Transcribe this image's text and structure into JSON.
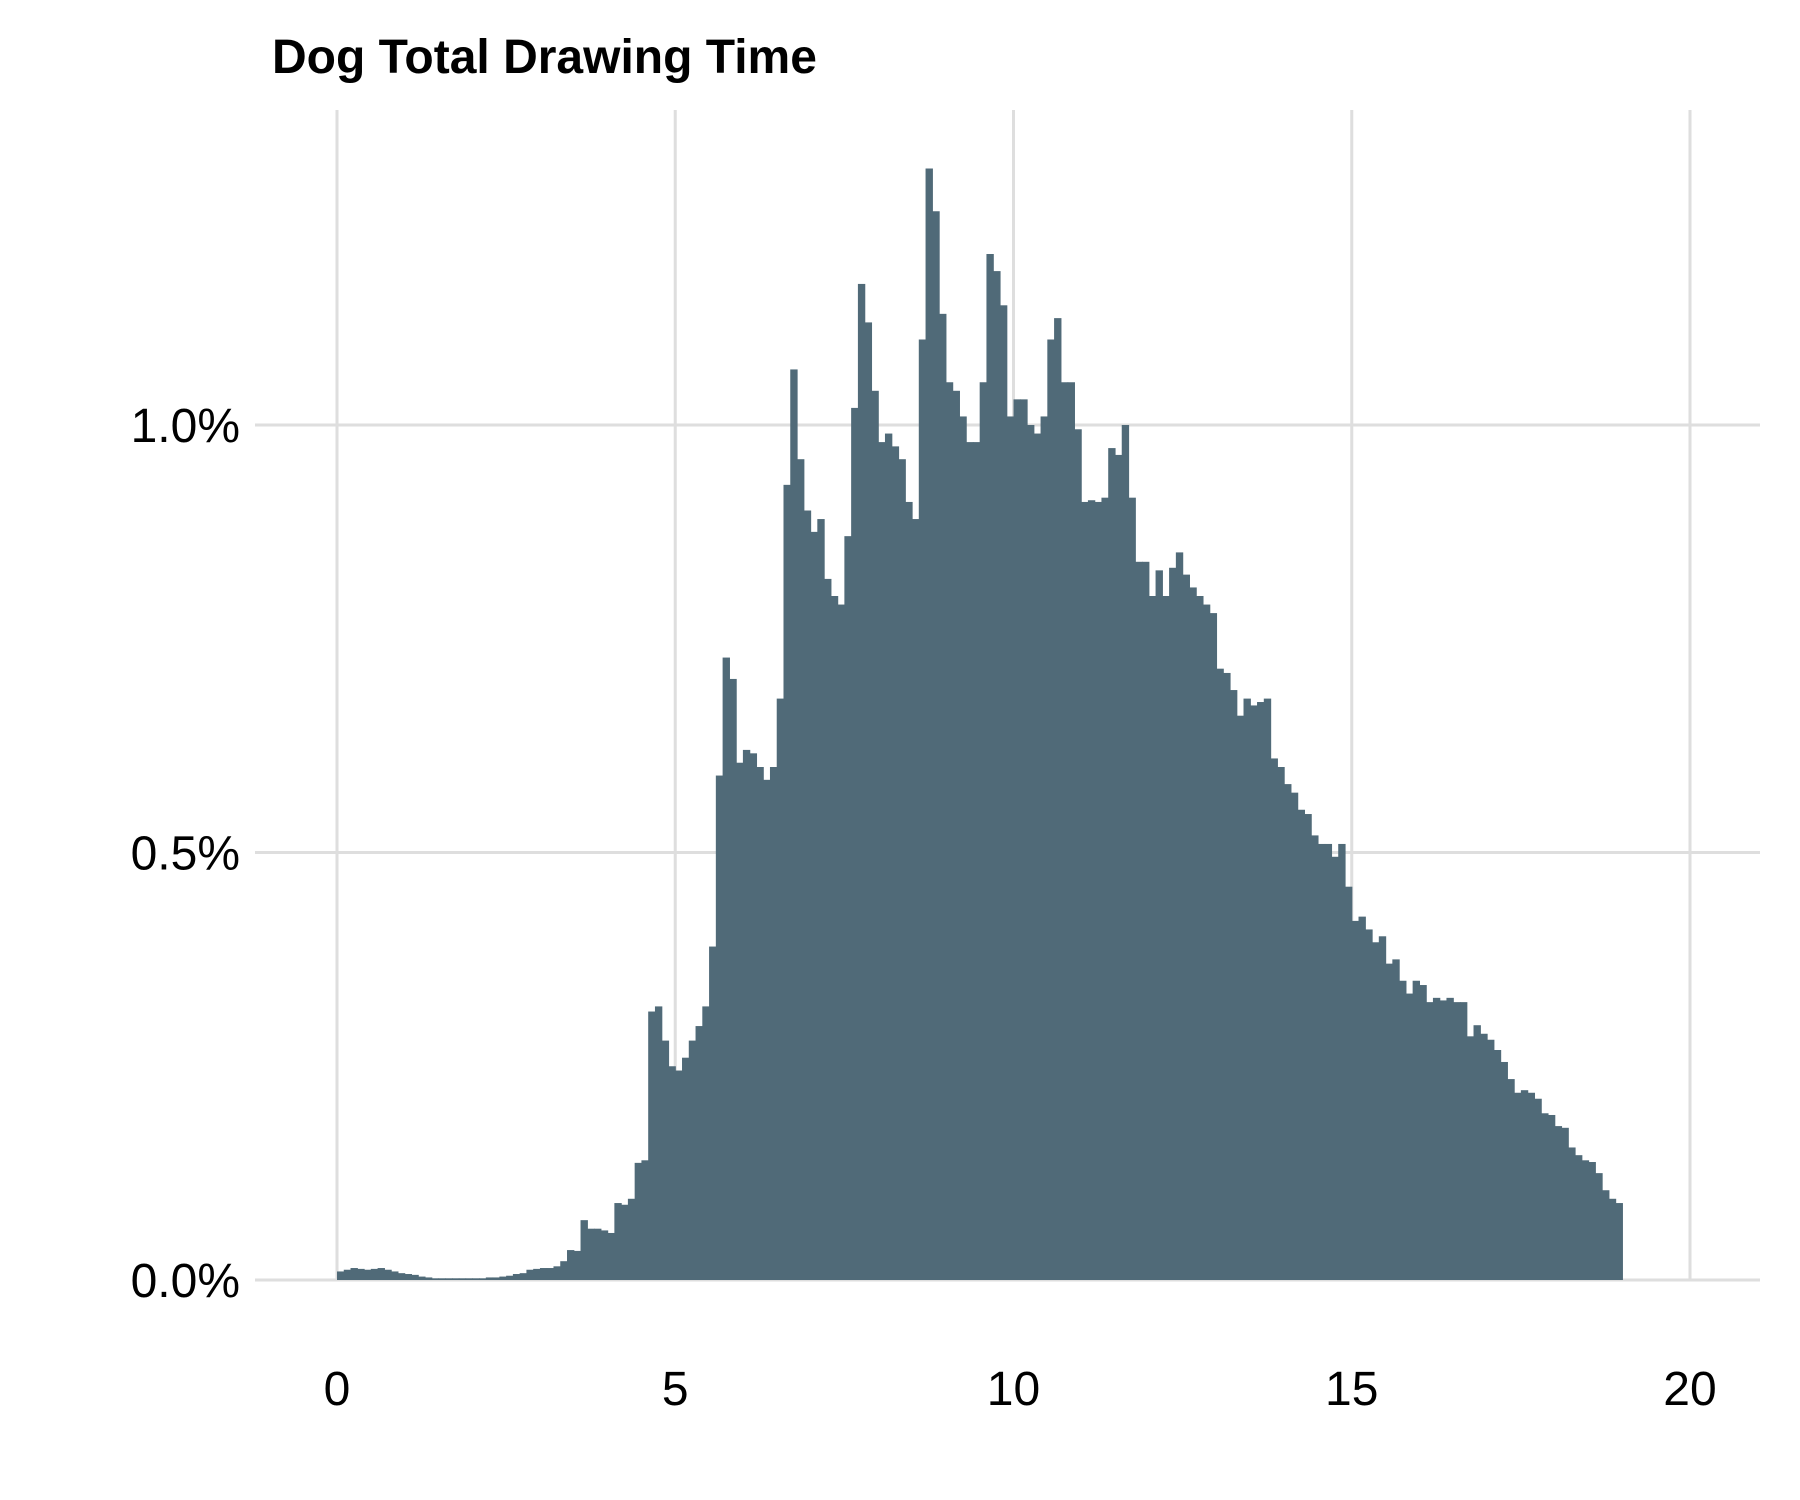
{
  "chart_data": {
    "type": "bar",
    "title": "Dog Total Drawing Time",
    "xlabel": "",
    "ylabel": "",
    "xlim": [
      -1.25,
      21.0
    ],
    "ylim": [
      0,
      1.34
    ],
    "x_ticks": [
      0,
      5,
      10,
      15,
      20
    ],
    "x_tick_labels": [
      "0",
      "5",
      "10",
      "15",
      "20"
    ],
    "y_ticks": [
      0,
      0.5,
      1.0
    ],
    "y_tick_labels": [
      "0.0%",
      "0.5%",
      "1.0%"
    ],
    "grid": true,
    "legend": "none",
    "bar_color": "#506a78",
    "grid_color": "#dedede",
    "bin_start": 0.0,
    "bin_width": 0.1,
    "values": [
      0.01,
      0.012,
      0.014,
      0.013,
      0.012,
      0.013,
      0.014,
      0.012,
      0.01,
      0.008,
      0.007,
      0.006,
      0.004,
      0.003,
      0.002,
      0.002,
      0.002,
      0.002,
      0.002,
      0.002,
      0.002,
      0.002,
      0.003,
      0.003,
      0.004,
      0.005,
      0.007,
      0.008,
      0.012,
      0.013,
      0.014,
      0.014,
      0.016,
      0.022,
      0.035,
      0.034,
      0.07,
      0.06,
      0.06,
      0.058,
      0.055,
      0.09,
      0.088,
      0.095,
      0.137,
      0.14,
      0.314,
      0.32,
      0.28,
      0.25,
      0.245,
      0.26,
      0.28,
      0.297,
      0.32,
      0.39,
      0.59,
      0.728,
      0.703,
      0.605,
      0.62,
      0.616,
      0.6,
      0.585,
      0.6,
      0.68,
      0.93,
      1.065,
      0.96,
      0.9,
      0.875,
      0.89,
      0.82,
      0.8,
      0.79,
      0.87,
      1.02,
      1.165,
      1.12,
      1.04,
      0.98,
      0.99,
      0.975,
      0.96,
      0.91,
      0.89,
      1.1,
      1.3,
      1.25,
      1.13,
      1.05,
      1.04,
      1.01,
      0.98,
      0.98,
      1.05,
      1.2,
      1.18,
      1.14,
      1.01,
      1.03,
      1.03,
      1.0,
      0.99,
      1.01,
      1.1,
      1.125,
      1.05,
      1.05,
      0.995,
      0.91,
      0.912,
      0.91,
      0.915,
      0.973,
      0.965,
      1.0,
      0.915,
      0.84,
      0.84,
      0.8,
      0.83,
      0.8,
      0.833,
      0.851,
      0.825,
      0.81,
      0.8,
      0.79,
      0.78,
      0.715,
      0.71,
      0.69,
      0.66,
      0.68,
      0.672,
      0.676,
      0.68,
      0.61,
      0.6,
      0.58,
      0.57,
      0.55,
      0.545,
      0.52,
      0.51,
      0.51,
      0.495,
      0.51,
      0.46,
      0.42,
      0.425,
      0.41,
      0.395,
      0.402,
      0.37,
      0.375,
      0.35,
      0.335,
      0.35,
      0.345,
      0.325,
      0.33,
      0.327,
      0.33,
      0.325,
      0.325,
      0.285,
      0.298,
      0.288,
      0.281,
      0.269,
      0.255,
      0.235,
      0.219,
      0.222,
      0.219,
      0.212,
      0.195,
      0.193,
      0.18,
      0.178,
      0.155,
      0.146,
      0.14,
      0.138,
      0.125,
      0.105,
      0.095,
      0.09
    ]
  }
}
